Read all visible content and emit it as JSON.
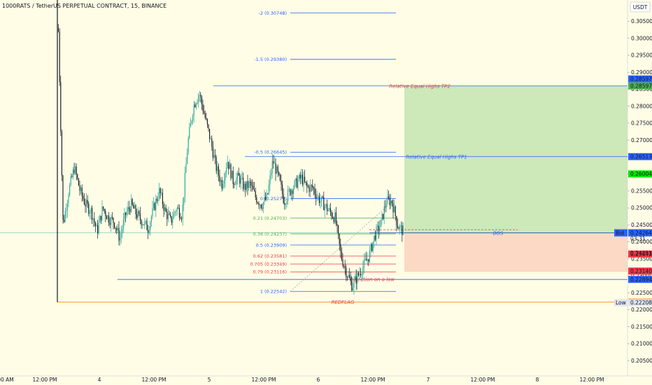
{
  "header": {
    "title": "1000RATS / TetherUS PERPETUAL CONTRACT, 15, BINANCE",
    "currency_button": "USDT"
  },
  "colors": {
    "background": "#fffde6",
    "up": "#26a69a",
    "down": "#131722",
    "fib_blue": "#2962ff",
    "fib_green": "#4caf50",
    "fib_red": "#f23645",
    "tp_zone": "#c8e6b4",
    "sl_zone": "#fcd5c0",
    "redflag": "#f57c00"
  },
  "chart_data": {
    "type": "candlestick",
    "symbol": "1000RATS / TetherUS PERPETUAL CONTRACT",
    "interval": "15",
    "exchange": "BINANCE",
    "ylim": [
      0.2005,
      0.3113
    ],
    "y_ticks": [
      "0.30500",
      "0.30000",
      "0.29500",
      "0.29000",
      "0.28500",
      "0.28000",
      "0.27500",
      "0.27000",
      "0.26500",
      "0.26000",
      "0.25500",
      "0.25000",
      "0.24500",
      "0.24000",
      "0.23500",
      "0.23000",
      "0.22500",
      "0.22000",
      "0.21500",
      "0.21000",
      "0.20500"
    ],
    "x_ticks": [
      "00 AM",
      "12:00 PM",
      "4",
      "12:00 PM",
      "5",
      "12:00 PM",
      "6",
      "12:00 PM",
      "7",
      "12:00 PM",
      "8",
      "12:00 PM"
    ],
    "price_path": [
      0.316,
      0.245,
      0.255,
      0.262,
      0.255,
      0.251,
      0.249,
      0.243,
      0.25,
      0.247,
      0.246,
      0.241,
      0.248,
      0.251,
      0.248,
      0.246,
      0.244,
      0.25,
      0.255,
      0.249,
      0.246,
      0.25,
      0.248,
      0.269,
      0.28,
      0.284,
      0.277,
      0.27,
      0.262,
      0.257,
      0.264,
      0.258,
      0.259,
      0.256,
      0.257,
      0.253,
      0.251,
      0.253,
      0.264,
      0.259,
      0.252,
      0.255,
      0.257,
      0.259,
      0.256,
      0.256,
      0.253,
      0.251,
      0.249,
      0.247,
      0.236,
      0.231,
      0.227,
      0.23,
      0.233,
      0.236,
      0.242,
      0.245,
      0.252,
      0.252,
      0.245,
      0.243
    ],
    "candle_count": 310,
    "fib_levels": [
      {
        "label": "-2 (0.30748)",
        "value": 0.30748
      },
      {
        "label": "-1.5 (0.29380)",
        "value": 0.2938
      },
      {
        "label": "-0.5 (0.26645)",
        "value": 0.26645
      },
      {
        "label": "0 (0.25277)",
        "value": 0.25277
      },
      {
        "label": "0.21 (0.24703)",
        "value": 0.24703
      },
      {
        "label": "0.38 (0.24237)",
        "value": 0.24237
      },
      {
        "label": "0.5 (0.23909)",
        "value": 0.23909
      },
      {
        "label": "0.62 (0.23581)",
        "value": 0.23581
      },
      {
        "label": "0.705 (0.23349)",
        "value": 0.23349
      },
      {
        "label": "0.79 (0.23116)",
        "value": 0.23116
      },
      {
        "label": "1 (0.22542)",
        "value": 0.22542
      }
    ],
    "lines": [
      {
        "label": "Relative Equal Highs TP2",
        "value": 0.28597
      },
      {
        "label": "Relative Equal Highs TP1",
        "value": 0.26513
      },
      {
        "label": "Rejection on a low",
        "value": 0.22894
      },
      {
        "label": "REDFLAG",
        "value": 0.22224
      },
      {
        "label": "BOS",
        "value": 0.24264
      }
    ],
    "price_tags": [
      {
        "text": "0.28597",
        "value": 0.28597,
        "color": "#2962ff",
        "offset": -10
      },
      {
        "text": "0.28597",
        "value": 0.28597,
        "color": "#4caf50",
        "offset": 0
      },
      {
        "text": "0.26513",
        "value": 0.26513,
        "color": "#2962ff",
        "offset": 0
      },
      {
        "text": "0.26004",
        "value": 0.26004,
        "color": "#00e600",
        "offset": 0
      },
      {
        "text": "0.24270",
        "value": 0.2427,
        "color": "#26a69a",
        "offset": 0
      },
      {
        "text": "0.24270",
        "value": 0.2427,
        "color": "#f23645",
        "offset": 0,
        "side": "Ask"
      },
      {
        "text": "0.24264",
        "value": 0.24264,
        "color": "#2962ff",
        "offset": 0,
        "side": "Bid"
      },
      {
        "text": "0.23643",
        "value": 0.23643,
        "color": "#f23645",
        "offset": 0
      },
      {
        "text": "0.23140",
        "value": 0.2314,
        "color": "#f23645",
        "offset": 0
      },
      {
        "text": "0.22894",
        "value": 0.22894,
        "color": "#2962ff",
        "offset": 0
      },
      {
        "text": "0.22224",
        "value": 0.22224,
        "color": "#f57c00",
        "offset": 0
      },
      {
        "text": "0.22208",
        "value": 0.22208,
        "color": "#e0e3eb",
        "offset": 0,
        "side": "Low"
      }
    ],
    "position": {
      "entry": 0.24237,
      "target": 0.28597,
      "stop": 0.23116
    },
    "sub_tags": {
      "countdown": "03:31",
      "below": "0.24251"
    }
  }
}
